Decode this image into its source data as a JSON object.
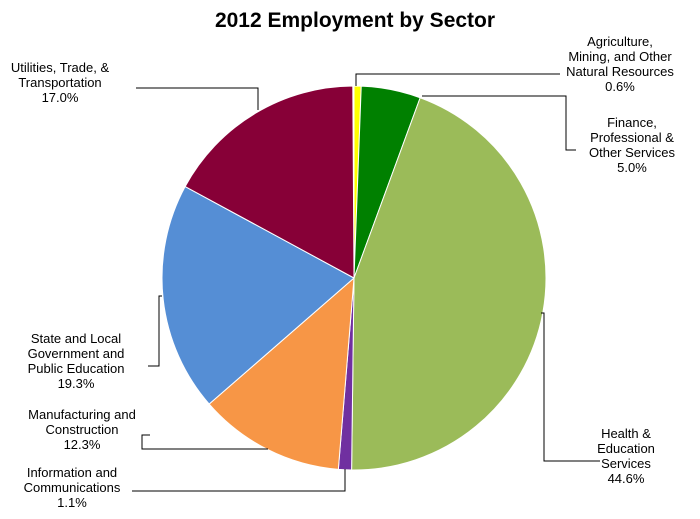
{
  "chart_data": {
    "type": "pie",
    "title": "2012 Employment by Sector",
    "slices": [
      {
        "label": [
          "Agriculture,",
          "Mining, and Other",
          "Natural Resources"
        ],
        "value": "0.6%",
        "pct": 0.6,
        "color": "#ffff00"
      },
      {
        "label": [
          "Finance,",
          "Professional &",
          "Other Services"
        ],
        "value": "5.0%",
        "pct": 5.0,
        "color": "#008000"
      },
      {
        "label": [
          "Health &",
          "Education",
          "Services"
        ],
        "value": "44.6%",
        "pct": 44.6,
        "color": "#9bbb59"
      },
      {
        "label": [
          "Information and",
          "Communications"
        ],
        "value": "1.1%",
        "pct": 1.1,
        "color": "#7030a0"
      },
      {
        "label": [
          "Manufacturing and",
          "Construction"
        ],
        "value": "12.3%",
        "pct": 12.3,
        "color": "#f79646"
      },
      {
        "label": [
          "State and Local",
          "Government and",
          "Public Education"
        ],
        "value": "19.3%",
        "pct": 19.3,
        "color": "#558ed5"
      },
      {
        "label": [
          "Utilities, Trade, &",
          "Transportation"
        ],
        "value": "17.0%",
        "pct": 17.0,
        "color": "#870037"
      }
    ]
  }
}
